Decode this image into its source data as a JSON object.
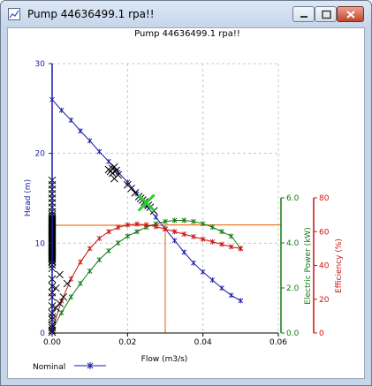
{
  "window": {
    "title": "Pump 44636499.1 rpa!!",
    "minimize_icon": "minimize-icon",
    "maximize_icon": "maximize-icon",
    "close_icon": "close-icon"
  },
  "plot": {
    "title": "Pump 44636499.1 rpa!!",
    "legend_label": "Nominal"
  },
  "colors": {
    "head": "#1a1aaa",
    "power": "#117a11",
    "efficiency": "#cc1111",
    "operating_point": "#2ad02a",
    "guide": "#f07828",
    "scatter": "#000000"
  },
  "chart_data": {
    "type": "line",
    "title": "Pump 44636499.1 rpa!!",
    "xlabel": "Flow (m3/s)",
    "xlim": [
      0,
      0.06
    ],
    "x_ticks": [
      "0.00",
      "0.02",
      "0.04",
      "0.06"
    ],
    "grid": true,
    "legend": {
      "position": "bottom-left",
      "entries": [
        "Nominal"
      ]
    },
    "axes": [
      {
        "id": "head",
        "label": "Head (m)",
        "side": "left",
        "ylim": [
          0,
          30
        ],
        "ticks": [
          "0",
          "10",
          "20",
          "30"
        ]
      },
      {
        "id": "power",
        "label": "Electric Power (kW)",
        "side": "right",
        "ylim": [
          0,
          6
        ],
        "ticks": [
          "0.0",
          "2.0",
          "4.0",
          "6.0"
        ]
      },
      {
        "id": "efficiency",
        "label": "Efficiency (%)",
        "side": "right",
        "ylim": [
          0,
          80
        ],
        "ticks": [
          "0",
          "20",
          "40",
          "60",
          "80"
        ]
      }
    ],
    "series": [
      {
        "name": "Nominal",
        "axis": "head",
        "marker": "star",
        "x": [
          0.0,
          0.0025,
          0.005,
          0.0075,
          0.01,
          0.0125,
          0.015,
          0.0175,
          0.02,
          0.0225,
          0.025,
          0.0275,
          0.03,
          0.0325,
          0.035,
          0.0375,
          0.04,
          0.0425,
          0.045,
          0.0475,
          0.05
        ],
        "y": [
          26.0,
          24.8,
          23.7,
          22.5,
          21.4,
          20.2,
          19.1,
          17.9,
          16.8,
          15.5,
          14.2,
          12.9,
          11.6,
          10.3,
          9.0,
          7.8,
          6.8,
          5.9,
          5.0,
          4.2,
          3.6
        ]
      },
      {
        "axis": "power",
        "marker": "star",
        "x": [
          0.0,
          0.0025,
          0.005,
          0.0075,
          0.01,
          0.0125,
          0.015,
          0.0175,
          0.02,
          0.0225,
          0.025,
          0.0275,
          0.03,
          0.0325,
          0.035,
          0.0375,
          0.04,
          0.0425,
          0.045,
          0.0475,
          0.05
        ],
        "y": [
          0.15,
          0.9,
          1.6,
          2.2,
          2.75,
          3.25,
          3.65,
          4.0,
          4.3,
          4.5,
          4.7,
          4.85,
          4.95,
          5.0,
          5.0,
          4.95,
          4.85,
          4.7,
          4.5,
          4.3,
          3.75
        ]
      },
      {
        "axis": "efficiency",
        "marker": "star",
        "x": [
          0.0,
          0.0025,
          0.005,
          0.0075,
          0.01,
          0.0125,
          0.015,
          0.0175,
          0.02,
          0.0225,
          0.025,
          0.0275,
          0.03,
          0.0325,
          0.035,
          0.0375,
          0.04,
          0.0425,
          0.045,
          0.0475,
          0.05
        ],
        "y": [
          2,
          19,
          32,
          42,
          50,
          56,
          60,
          62.5,
          64,
          64.5,
          64,
          63,
          61.5,
          60,
          58.5,
          57,
          55.5,
          54,
          52.5,
          51,
          50
        ]
      },
      {
        "axis": "head",
        "marker": "x",
        "x": [
          0.0,
          0.0,
          0.0,
          0.0,
          0.0,
          0.0,
          0.0,
          0.0,
          0.0,
          0.0,
          0.0,
          0.0,
          0.0,
          0.0,
          0.0,
          0.0,
          0.0,
          0.0,
          0.0,
          0.0,
          0.0,
          0.0,
          0.0,
          0.0,
          0.0,
          0.0,
          0.0,
          0.0,
          0.0,
          0.0,
          0.0,
          0.0,
          0.0,
          0.0,
          0.0,
          0.0,
          0.0,
          0.0,
          0.0,
          0.0,
          0.0,
          0.0,
          0.0,
          0.0,
          0.0,
          0.0,
          0.0,
          0.0,
          0.0,
          0.0,
          0.0,
          0.0,
          0.0,
          0.0,
          0.0,
          0.0,
          0.0,
          0.0,
          0.0,
          0.0,
          0.0,
          0.0,
          0.0,
          0.0,
          0.0,
          0.0,
          0.0,
          0.0,
          0.0,
          0.0,
          0.001,
          0.002,
          0.003,
          0.004,
          0.002,
          0.001,
          0.0,
          0.015,
          0.0155,
          0.016,
          0.0165,
          0.017,
          0.0175,
          0.0165,
          0.016,
          0.02,
          0.021,
          0.022,
          0.023,
          0.024,
          0.025,
          0.026,
          0.027,
          0.0235,
          0.0245,
          0.0255
        ],
        "y": [
          17.0,
          16.5,
          16.0,
          15.5,
          15.0,
          14.5,
          14.0,
          13.5,
          13.2,
          13.0,
          12.8,
          12.6,
          12.4,
          12.2,
          12.0,
          11.8,
          11.6,
          11.4,
          11.2,
          11.0,
          10.8,
          10.6,
          10.4,
          10.2,
          10.0,
          9.8,
          9.6,
          9.4,
          9.2,
          9.0,
          8.8,
          8.6,
          8.4,
          8.2,
          8.0,
          10.9,
          11.1,
          11.3,
          11.5,
          11.7,
          12.1,
          12.3,
          12.5,
          12.7,
          10.7,
          10.5,
          10.3,
          9.9,
          9.7,
          9.5,
          9.3,
          9.1,
          8.9,
          8.7,
          8.5,
          8.3,
          7.9,
          7.6,
          7.2,
          6.0,
          5.2,
          4.0,
          3.0,
          2.2,
          1.5,
          0.9,
          0.6,
          0.3,
          0.1,
          4.5,
          2.8,
          3.3,
          4.0,
          5.5,
          6.5,
          5.0,
          1.8,
          18.2,
          18.0,
          17.8,
          18.5,
          18.1,
          17.6,
          17.2,
          18.3,
          16.5,
          16.1,
          15.6,
          15.2,
          14.8,
          14.4,
          14.0,
          13.6,
          15.0,
          14.6,
          14.2
        ]
      }
    ],
    "operating_point": {
      "x": 0.025,
      "head": 14.5
    },
    "guide_lines": {
      "x": 0.03,
      "head": 12.0,
      "power": 4.8
    }
  }
}
